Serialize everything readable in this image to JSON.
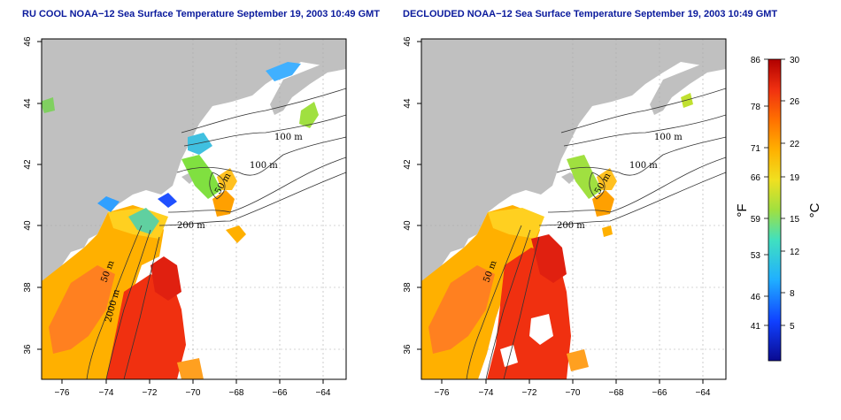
{
  "left_panel": {
    "title": "RU COOL NOAA−12 Sea Surface Temperature September 19, 2003 10:49 GMT",
    "contour_labels": [
      "100 m",
      "100 m",
      "50 m",
      "200 m",
      "50 m",
      "2000 m"
    ]
  },
  "right_panel": {
    "title": "DECLOUDED NOAA−12 Sea Surface Temperature September 19, 2003 10:49 GMT",
    "contour_labels": [
      "100 m",
      "100 m",
      "50 m",
      "200 m",
      "50 m"
    ]
  },
  "axes": {
    "lon_ticks": [
      "−76",
      "−74",
      "−72",
      "−70",
      "−68",
      "−66",
      "−64"
    ],
    "lat_ticks": [
      "46",
      "44",
      "42",
      "40",
      "38",
      "36"
    ]
  },
  "colorbar": {
    "f_ticks": [
      "86",
      "78",
      "71",
      "66",
      "59",
      "53",
      "46",
      "41"
    ],
    "c_ticks": [
      "30",
      "26",
      "22",
      "19",
      "15",
      "12",
      "8",
      "5"
    ],
    "f_label": "°F",
    "c_label": "°C"
  },
  "colors": {
    "land": "#c0c0c0",
    "title": "#0a1a9c"
  }
}
